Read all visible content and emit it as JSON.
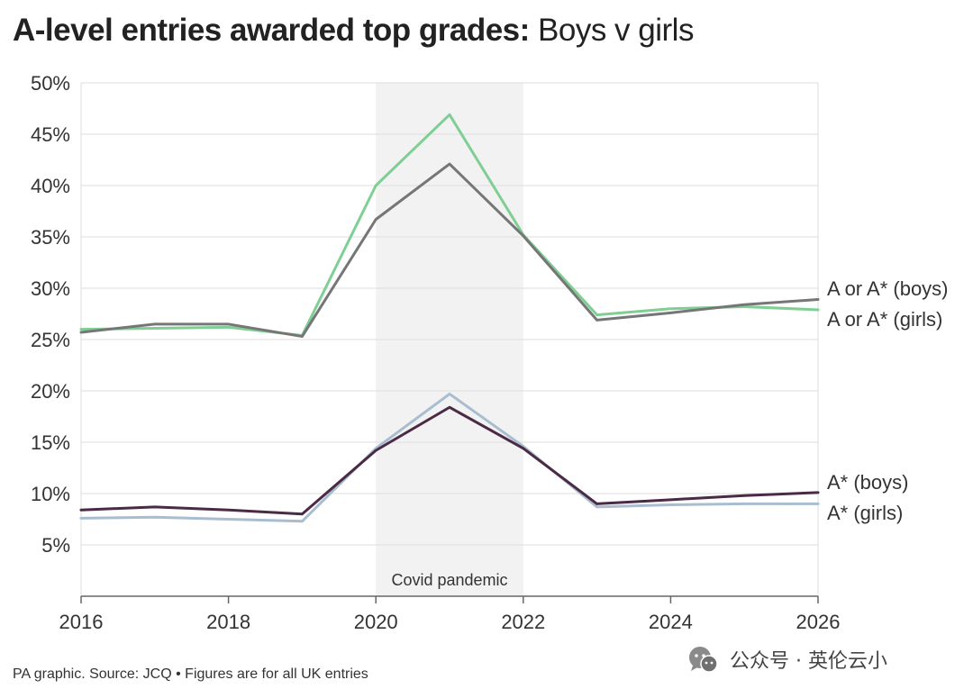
{
  "title": {
    "bold": "A-level entries awarded top grades",
    "separator": ":",
    "light": " Boys v girls"
  },
  "footer": "PA graphic. Source: JCQ • Figures are for all UK entries",
  "watermark": "公众号 · 英伦云小",
  "chart_data": {
    "type": "line",
    "x": [
      2016,
      2017,
      2018,
      2019,
      2020,
      2021,
      2022,
      2023,
      2024,
      2025,
      2026
    ],
    "xlim": [
      2016,
      2026
    ],
    "x_ticks": [
      2016,
      2018,
      2020,
      2022,
      2024,
      2026
    ],
    "ylim": [
      0,
      50
    ],
    "y_ticks": [
      5,
      10,
      15,
      20,
      25,
      30,
      35,
      40,
      45,
      50
    ],
    "y_tick_format": "percent",
    "grid": true,
    "legend": "direct labels at right end of lines",
    "shaded_region": {
      "x_start": 2020,
      "x_end": 2022,
      "label": "Covid pandemic",
      "color": "#f2f2f2"
    },
    "series": [
      {
        "name": "A or A* (boys)",
        "color": "#767676",
        "values": [
          25.7,
          26.5,
          26.5,
          25.3,
          36.7,
          42.1,
          35.1,
          26.9,
          27.6,
          28.4,
          28.9
        ]
      },
      {
        "name": "A or A* (girls)",
        "color": "#7fcf95",
        "values": [
          26.0,
          26.1,
          26.2,
          25.4,
          40.0,
          46.9,
          35.2,
          27.4,
          28.0,
          28.2,
          27.9
        ]
      },
      {
        "name": "A* (boys)",
        "color": "#4a2a44",
        "values": [
          8.4,
          8.7,
          8.4,
          8.0,
          14.2,
          18.4,
          14.4,
          9.0,
          9.4,
          9.8,
          10.1
        ]
      },
      {
        "name": "A* (girls)",
        "color": "#a9bdd0",
        "values": [
          7.6,
          7.7,
          7.5,
          7.3,
          14.4,
          19.7,
          14.6,
          8.7,
          8.9,
          9.0,
          9.0
        ]
      }
    ]
  }
}
